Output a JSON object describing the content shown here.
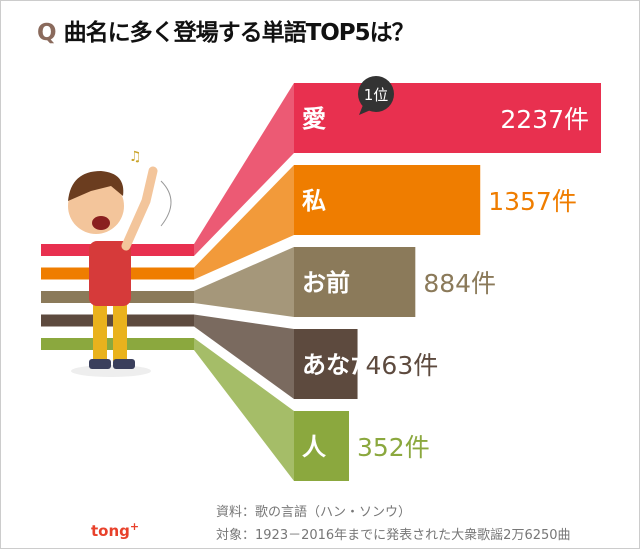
{
  "title": {
    "q": "Q",
    "text": "曲名に多く登場する単語TOP5は？"
  },
  "rank_badge": "1位",
  "unit": "件",
  "chart_data": {
    "type": "bar",
    "title": "曲名に多く登場する単語TOP5は？",
    "categories": [
      "愛",
      "私",
      "お前",
      "あなた",
      "人"
    ],
    "values": [
      2237,
      1357,
      884,
      463,
      352
    ],
    "value_labels": [
      "2237件",
      "1357件",
      "884件",
      "463件",
      "352件"
    ],
    "colors": [
      "#e8304f",
      "#ef7d00",
      "#8b7a5a",
      "#5d4a3e",
      "#8ba83e"
    ],
    "light_colors": [
      "#ec5a74",
      "#f29a3a",
      "#a5977a",
      "#7a6a5f",
      "#a5bd68"
    ]
  },
  "source": "資料：歌の言語（ハン・ソンウ）",
  "target": "対象：1923－2016年までに発表された大衆歌謡2万6250曲",
  "logo": {
    "text": "tong",
    "plus": "+"
  }
}
